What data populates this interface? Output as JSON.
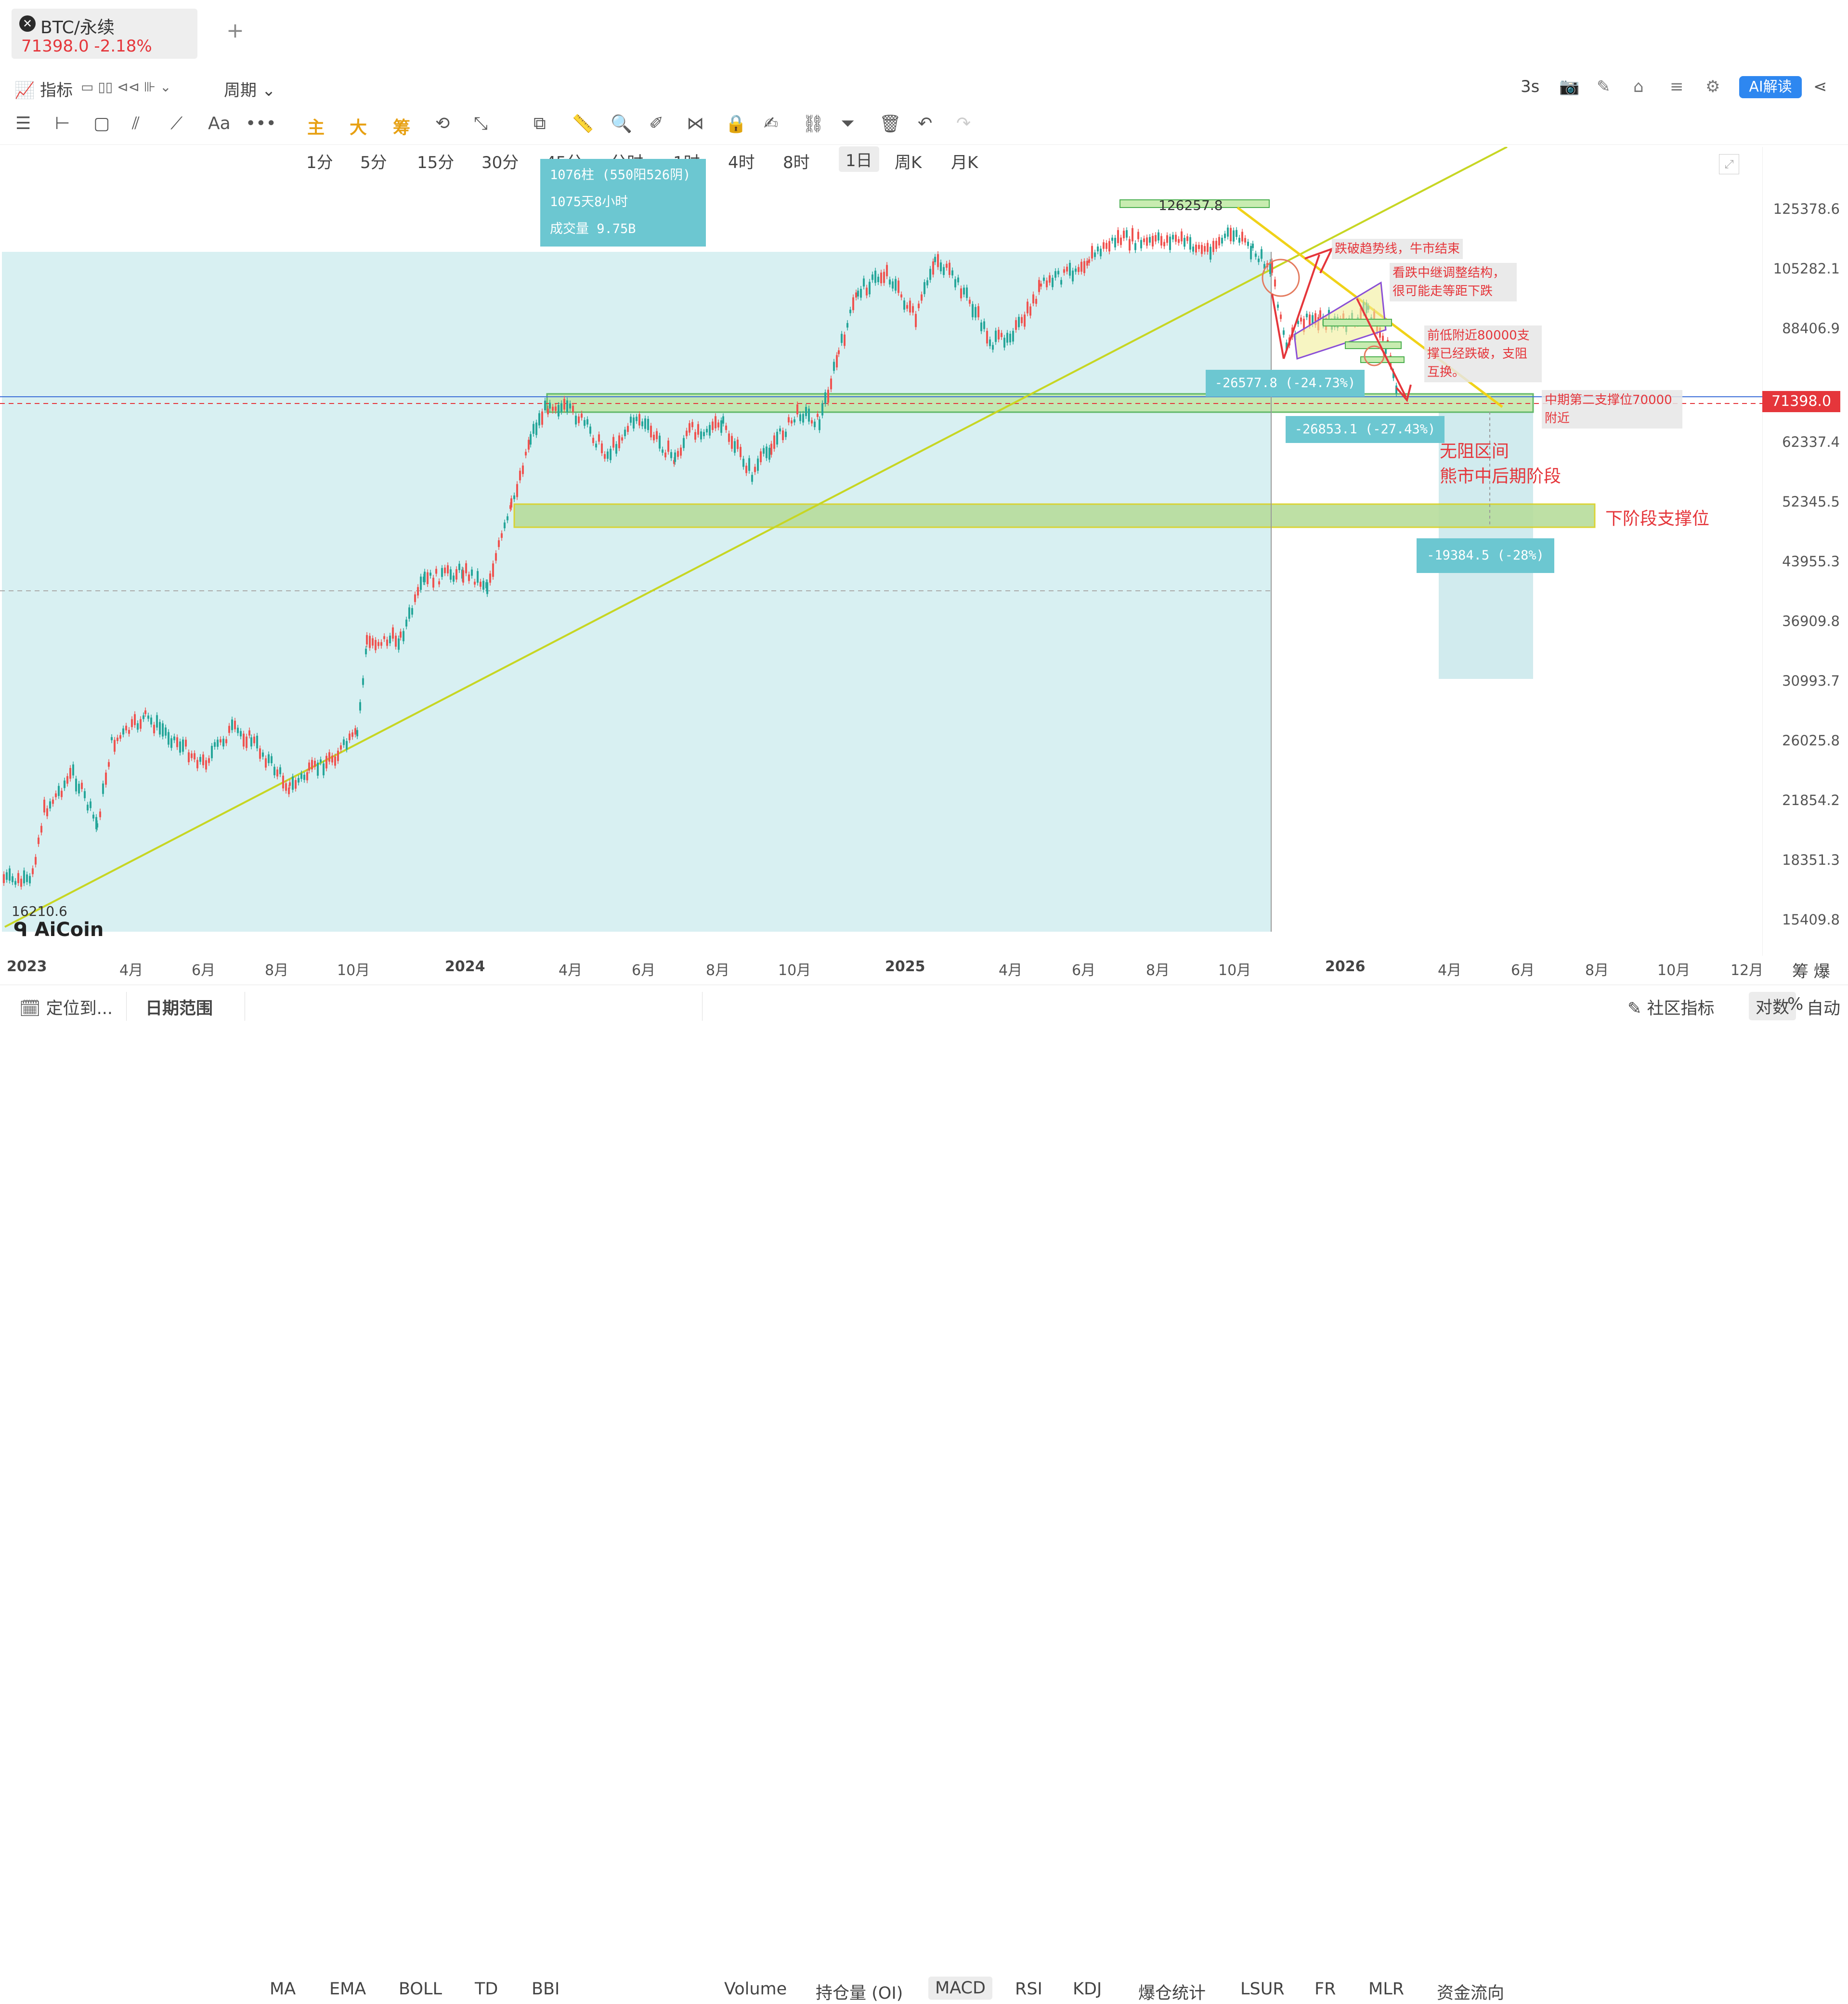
{
  "tab": {
    "icon": "close-icon",
    "title": "BTC/永续",
    "price": "71398.0",
    "change": "-2.18%",
    "add": "+"
  },
  "toolbar": {
    "indicator_label": "指标",
    "period_label": "周期",
    "intervals": [
      "1分",
      "5分",
      "15分",
      "30分",
      "45分",
      "分时",
      "1时",
      "4时",
      "8时",
      "1日",
      "周K",
      "月K"
    ],
    "selected_interval": "1日",
    "refresh": "3s",
    "ai_label": "AI解读"
  },
  "drawing_tools": {
    "text_tool": "Aa",
    "more": "•••",
    "main": "主",
    "big": "大",
    "chips": "筹"
  },
  "chart": {
    "symbol": "BTC/永续",
    "watermark": "AiCoin",
    "current_price": "71398.0",
    "y_ticks": [
      "125378.6",
      "105282.1",
      "88406.9",
      "62337.4",
      "52345.5",
      "43955.3",
      "36909.8",
      "30993.7",
      "26025.8",
      "21854.2",
      "18351.3",
      "15409.8"
    ],
    "x_ticks": [
      {
        "label": "2023",
        "bold": true
      },
      {
        "label": "4月",
        "bold": false
      },
      {
        "label": "6月",
        "bold": false
      },
      {
        "label": "8月",
        "bold": false
      },
      {
        "label": "10月",
        "bold": false
      },
      {
        "label": "2024",
        "bold": true
      },
      {
        "label": "4月",
        "bold": false
      },
      {
        "label": "6月",
        "bold": false
      },
      {
        "label": "8月",
        "bold": false
      },
      {
        "label": "10月",
        "bold": false
      },
      {
        "label": "2025",
        "bold": true
      },
      {
        "label": "4月",
        "bold": false
      },
      {
        "label": "6月",
        "bold": false
      },
      {
        "label": "8月",
        "bold": false
      },
      {
        "label": "10月",
        "bold": false
      },
      {
        "label": "2026",
        "bold": true
      },
      {
        "label": "4月",
        "bold": false
      },
      {
        "label": "6月",
        "bold": false
      },
      {
        "label": "8月",
        "bold": false
      },
      {
        "label": "10月",
        "bold": false
      },
      {
        "label": "12月",
        "bold": false
      }
    ],
    "x_axis_extra": "筹 爆",
    "low_label": "16210.6",
    "high_label": "126257.8",
    "info_box": {
      "line1": "1076柱 (550阳526阴)",
      "line2": "1075天8小时",
      "line3": "成交量 9.75B"
    },
    "measure_1": "-26577.8 (-24.73%)",
    "measure_2": "-26853.1 (-27.43%)",
    "measure_3": "-19384.5 (-28%)",
    "notes": {
      "trend_break": "跌破趋势线，牛市结束",
      "consolidation": "看跌中继调整结构，很可能走等距下跌",
      "support_flip": "前低附近80000支撑已经跌破，支阻互换。",
      "mid_support": "中期第二支撑位70000附近",
      "no_resistance_1": "无阻区间",
      "no_resistance_2": "熊市中后期阶段",
      "next_support": "下阶段支撑位"
    }
  },
  "bottom_bar": {
    "goto": "定位到...",
    "date_range": "日期范围",
    "main_indicators": [
      "MA",
      "EMA",
      "BOLL",
      "TD",
      "BBI"
    ],
    "sub_indicators": [
      "Volume",
      "持仓量 (OI)",
      "MACD",
      "RSI",
      "KDJ",
      "爆仓统计",
      "LSUR",
      "FR",
      "MLR",
      "资金流向"
    ],
    "selected_sub": "MACD",
    "community": "社区指标",
    "log_scale": "对数",
    "percent": "%",
    "auto": "自动"
  },
  "colors": {
    "up": "#26a69a",
    "down": "#ef5350",
    "accent": "#2e87f0",
    "highlight": "#e5363b",
    "zone": "#d8f0f2"
  }
}
